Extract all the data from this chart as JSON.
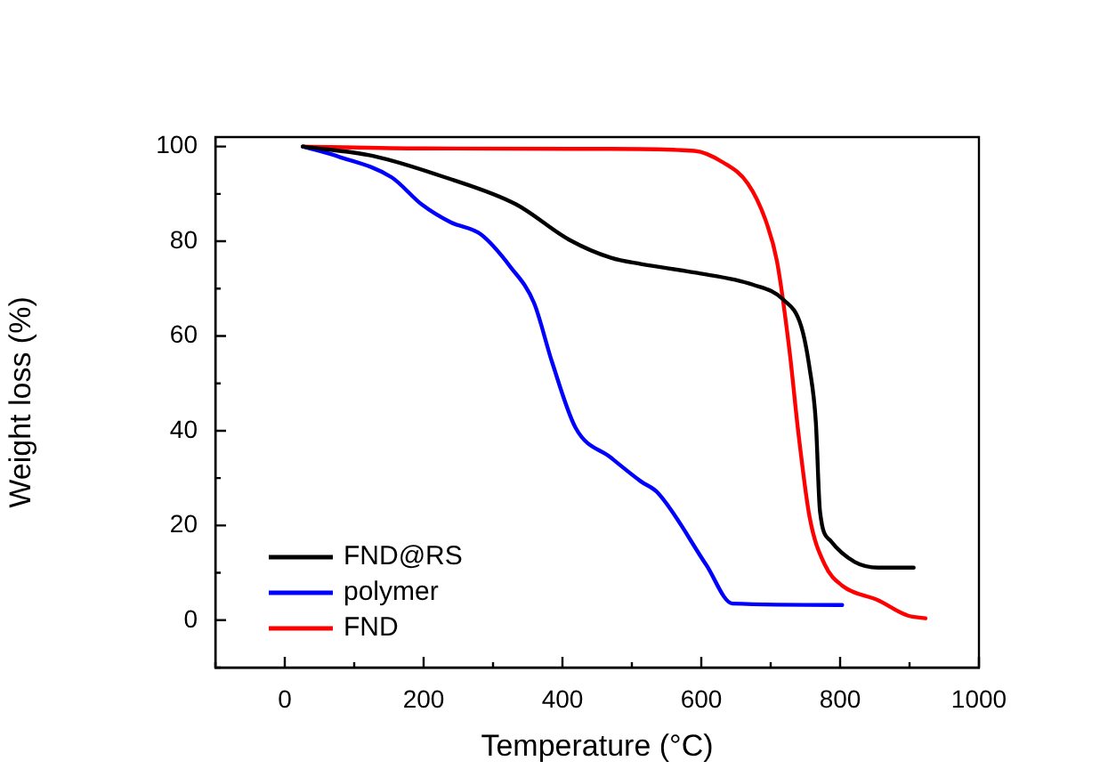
{
  "chart_data": {
    "type": "line",
    "xlabel": "Temperature (°C)",
    "ylabel": "Weight loss (%)",
    "xlim": [
      -100,
      1000
    ],
    "xticks": [
      {
        "value": -100,
        "label": null
      },
      0,
      {
        "value": 100,
        "label": null
      },
      200,
      {
        "value": 300,
        "label": null
      },
      400,
      {
        "value": 500,
        "label": null
      },
      600,
      {
        "value": 700,
        "label": null
      },
      800,
      {
        "value": 900,
        "label": null
      },
      1000
    ],
    "ylim": [
      -10,
      102
    ],
    "yticks": [
      {
        "value": -10,
        "label": null
      },
      0,
      {
        "value": 10,
        "label": null
      },
      20,
      {
        "value": 30,
        "label": null
      },
      40,
      {
        "value": 50,
        "label": null
      },
      60,
      {
        "value": 70,
        "label": null
      },
      80,
      {
        "value": 90,
        "label": null
      },
      100
    ],
    "grid": false,
    "legend": "bottom left",
    "marker": "none",
    "line_style": "solid",
    "series": [
      {
        "name": "FND@RS",
        "color": "#000000",
        "x": [
          26,
          128,
          231,
          333,
          410,
          470,
          513,
          590,
          675,
          718,
          744,
          756,
          765,
          771,
          786,
          821,
          855,
          906
        ],
        "values": [
          100,
          98,
          93.5,
          87.8,
          80.3,
          76.5,
          75.2,
          73.4,
          70.8,
          67.7,
          62,
          53.2,
          41.9,
          23,
          16.8,
          12.3,
          11.1,
          11.1
        ]
      },
      {
        "name": "polymer",
        "color": "#0000ff",
        "x": [
          26,
          77,
          154,
          197,
          239,
          282,
          325,
          359,
          385,
          419,
          470,
          513,
          538,
          607,
          645,
          803
        ],
        "values": [
          100,
          97.9,
          93.5,
          87.8,
          84,
          81.5,
          74.6,
          67,
          54.5,
          40.6,
          34.3,
          29.3,
          26.8,
          11.7,
          3.5,
          3.2
        ]
      },
      {
        "name": "FND",
        "color": "#ff0000",
        "x": [
          26,
          200,
          462,
          590,
          632,
          667,
          692,
          709,
          727,
          740,
          756,
          778,
          803,
          855,
          897,
          923
        ],
        "values": [
          100,
          99.6,
          99.5,
          99.1,
          96.6,
          92.2,
          84.7,
          75.8,
          57,
          39.4,
          21.8,
          11.7,
          7.3,
          4.2,
          1,
          0.4
        ]
      }
    ]
  }
}
